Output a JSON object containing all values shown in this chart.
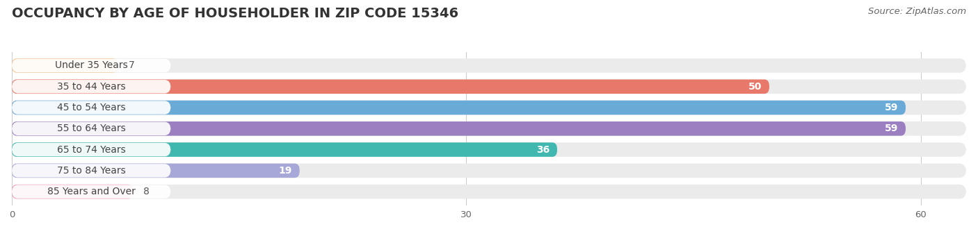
{
  "title": "OCCUPANCY BY AGE OF HOUSEHOLDER IN ZIP CODE 15346",
  "source": "Source: ZipAtlas.com",
  "categories": [
    "Under 35 Years",
    "35 to 44 Years",
    "45 to 54 Years",
    "55 to 64 Years",
    "65 to 74 Years",
    "75 to 84 Years",
    "85 Years and Over"
  ],
  "values": [
    7,
    50,
    59,
    59,
    36,
    19,
    8
  ],
  "bar_colors": [
    "#f5c898",
    "#e8796a",
    "#6aaad6",
    "#9b7fc0",
    "#40b8b0",
    "#a8a8d8",
    "#f4a0b8"
  ],
  "bar_bg_color": "#ebebeb",
  "xlim_max": 63,
  "xticks": [
    0,
    30,
    60
  ],
  "title_fontsize": 14,
  "source_fontsize": 9.5,
  "label_fontsize": 10,
  "value_fontsize": 10,
  "bar_height": 0.68,
  "background_color": "#ffffff",
  "label_color": "#444444",
  "value_color_inside": "#ffffff",
  "value_color_outside": "#555555",
  "inside_threshold": 15,
  "pill_color": "#ffffff",
  "pill_alpha": 0.92
}
